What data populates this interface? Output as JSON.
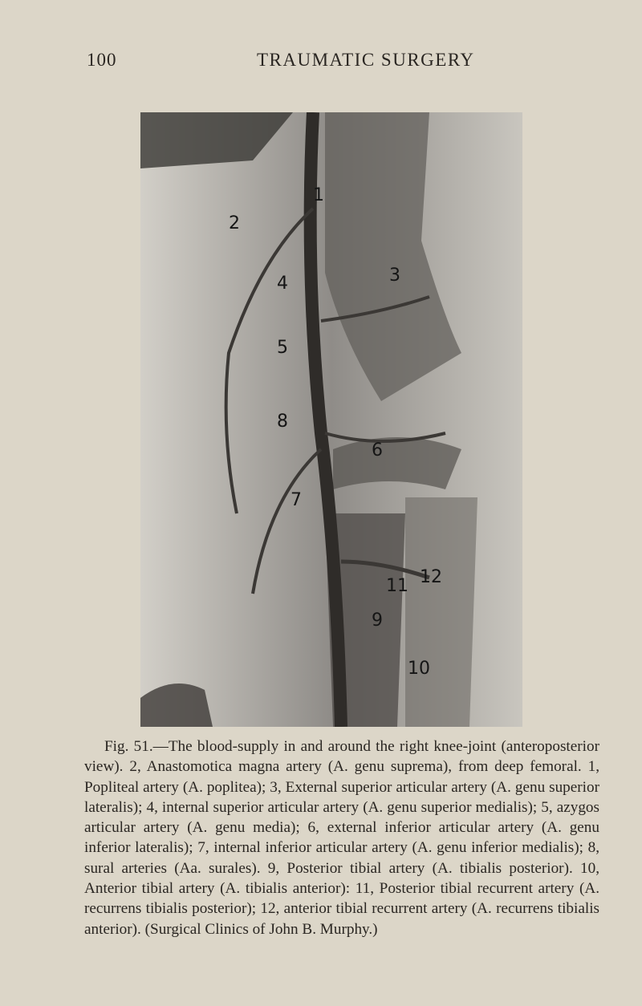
{
  "header": {
    "page_number": "100",
    "running_title": "TRAUMATIC SURGERY"
  },
  "figure": {
    "labels": [
      "1",
      "2",
      "3",
      "4",
      "5",
      "6",
      "7",
      "8",
      "9",
      "10",
      "11",
      "12"
    ]
  },
  "caption": "Fig. 51.—The blood-supply in and around the right knee-joint (anteroposterior view). 2, Anastomotica magna artery (A. genu suprema), from deep femoral. 1, Popliteal artery (A. poplitea); 3, External superior articular artery (A. genu superior lateralis); 4, internal superior articular artery (A. genu superior medialis); 5, azygos articular artery (A. genu media); 6, external inferior articular artery (A. genu inferior lateralis); 7, internal inferior articular artery (A. genu inferior medialis); 8, sural arteries (Aa. surales). 9, Posterior tibial artery (A. tibialis posterior). 10, Anterior tibial artery (A. tibialis anterior): 11, Posterior tibial recurrent artery (A. recurrens tibialis posterior); 12, anterior tibial recurrent artery (A. recurrens tibialis anterior). (Surgical Clinics of John B. Murphy.)"
}
